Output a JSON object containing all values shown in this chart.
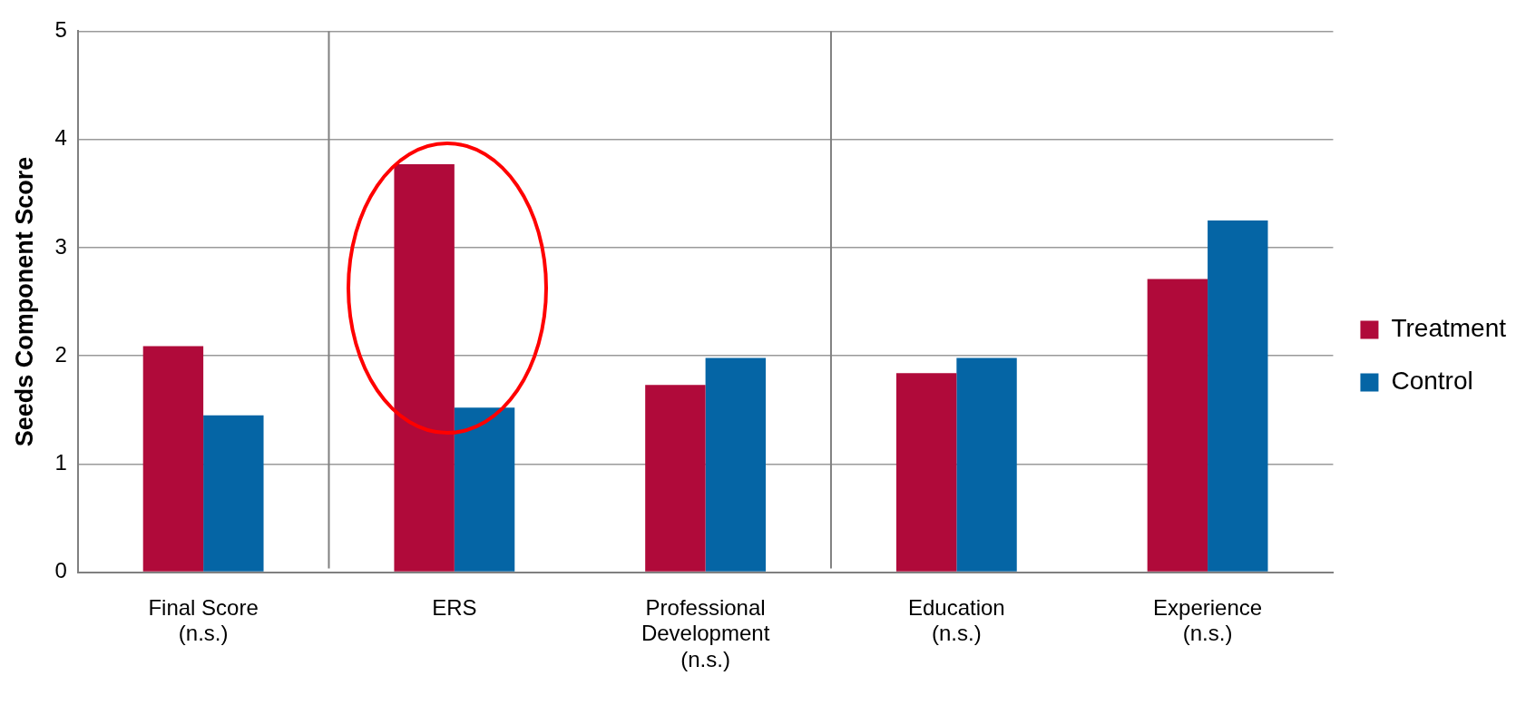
{
  "chart_data": {
    "type": "bar",
    "ylabel": "Seeds Component Score",
    "categories": [
      "Final Score\n(n.s.)",
      "ERS",
      "Professional\nDevelopment\n(n.s.)",
      "Education\n(n.s.)",
      "Experience\n(n.s.)"
    ],
    "series": [
      {
        "name": "Treatment",
        "color": "#b00a3a",
        "values": [
          2.09,
          3.77,
          1.73,
          1.84,
          2.71
        ]
      },
      {
        "name": "Control",
        "color": "#0565a5",
        "values": [
          1.45,
          1.52,
          1.98,
          1.98,
          3.25
        ]
      }
    ],
    "ylim": [
      0,
      5
    ],
    "yticks": [
      0,
      1,
      2,
      3,
      4,
      5
    ],
    "grid": "y",
    "legend": "right"
  }
}
